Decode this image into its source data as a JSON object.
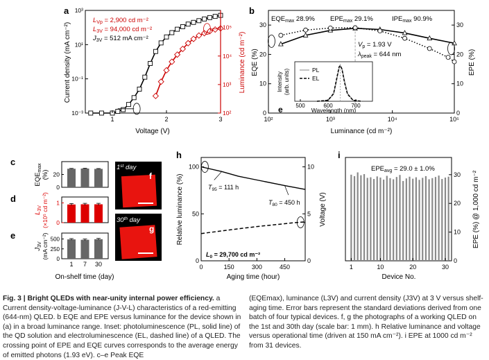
{
  "panels": {
    "a": {
      "letter": "a",
      "ann_lvp": "L",
      "ann_lvp_sub": "Vp",
      "ann_lvp_val": " = 2,900 cd m⁻²",
      "ann_l3v": "L",
      "ann_l3v_sub": "3V",
      "ann_l3v_val": " = 94,000 cd m⁻²",
      "ann_j3v": "J",
      "ann_j3v_sub": "3V",
      "ann_j3v_val": " = 512 mA cm⁻²",
      "ylabel": "Current density (mA cm⁻²)",
      "y2label": "Luminance (cd m⁻²)",
      "xlabel": "Voltage (V)",
      "xticks": [
        "1",
        "2",
        "3"
      ],
      "yticks": [
        "10⁻³",
        "10⁻¹",
        "10¹",
        "10³"
      ],
      "y2ticks": [
        "10²",
        "10³",
        "10⁴",
        "10⁵"
      ]
    },
    "b": {
      "letter": "b",
      "eqe_max": "EQE",
      "eqe_max_sub": "max",
      "eqe_max_val": " 28.9%",
      "epe_max": "EPE",
      "epe_max_sub": "max",
      "epe_max_val": " 29.1%",
      "ipe_max": "IPE",
      "ipe_max_sub": "max",
      "ipe_max_val": " 90.9%",
      "vp": "V",
      "vp_sub": "p",
      "vp_val": " = 1.93 V",
      "lpeak": "λ",
      "lpeak_sub": "peak",
      "lpeak_val": " = 644 nm",
      "ylabel": "EQE (%)",
      "y2label": "EPE (%)",
      "xlabel": "Luminance (cd m⁻²)",
      "yticks": [
        "0",
        "10",
        "20",
        "30"
      ],
      "xticks": [
        "10²",
        "10³",
        "10⁴",
        "10⁵"
      ],
      "inset": {
        "letter": "e",
        "ylabel_1": "Intensity",
        "ylabel_2": "(arb. units)",
        "xlabel": "Wavelength (nm)",
        "xticks": [
          "500",
          "600",
          "700"
        ],
        "legend_pl": "PL",
        "legend_el": "EL"
      }
    },
    "c": {
      "letter": "c",
      "ylabel": "EQE",
      "ylabel_sub": "max",
      "ylabel_unit": "(%)",
      "yticks": [
        "0",
        "20"
      ]
    },
    "d": {
      "letter": "d",
      "ylabel": "L",
      "ylabel_sub": "3V",
      "ylabel_unit": "(×10⁵ cd m⁻²)",
      "yticks": [
        "0",
        "1"
      ]
    },
    "e": {
      "letter": "e",
      "ylabel": "J",
      "ylabel_sub": "3V",
      "ylabel_unit": "(mA cm⁻²)",
      "yticks": [
        "0",
        "250",
        "500"
      ],
      "xticks": [
        "1",
        "7",
        "30"
      ],
      "xlabel": "On-shelf time (day)"
    },
    "f": {
      "letter": "f",
      "day_num": "1",
      "day_sup": "st",
      "day_word": " day"
    },
    "g": {
      "letter": "g",
      "day_num": "30",
      "day_sup": "th",
      "day_word": " day"
    },
    "h": {
      "letter": "h",
      "ylabel": "Relative luminance (%)",
      "y2label": "Voltage (V)",
      "xlabel": "Aging time (hour)",
      "yticks": [
        "0",
        "50",
        "100"
      ],
      "y2ticks": [
        "0",
        "5",
        "10"
      ],
      "xticks": [
        "0",
        "150",
        "300",
        "450"
      ],
      "t95": "T",
      "t95_sub": "95",
      "t95_val": " = 111 h",
      "t80": "T",
      "t80_sub": "80",
      "t80_val": " = 450 h",
      "l0": "L",
      "l0_sub": "0",
      "l0_val": " = 29,700 cd m⁻²"
    },
    "i": {
      "letter": "i",
      "epe_avg": "EPE",
      "epe_avg_sub": "avg",
      "epe_avg_val": " = 29.0 ± 1.0%",
      "ylabel": "EPE (%) @ 1,000 cd m⁻²",
      "yticks": [
        "0",
        "10",
        "20",
        "30"
      ],
      "xticks": [
        "1",
        "10",
        "20",
        "30"
      ],
      "xlabel": "Device No."
    }
  },
  "chart_data": [
    {
      "panel": "a",
      "type": "line",
      "title": "",
      "xlabel": "Voltage (V)",
      "ylabel": "Current density (mA cm-2)",
      "y2label": "Luminance (cd m-2)",
      "xlim": [
        0.5,
        3.0
      ],
      "ylog_exp_range": [
        -3,
        3
      ],
      "y2log_exp_range": [
        2,
        5.6
      ],
      "series": [
        {
          "name": "Current density",
          "color": "#000000",
          "axis": "left",
          "x": [
            0.6,
            0.8,
            1.0,
            1.1,
            1.2,
            1.3,
            1.4,
            1.5,
            1.6,
            1.7,
            1.8,
            1.9,
            2.0,
            2.1,
            2.2,
            2.3,
            2.4,
            2.5,
            2.6,
            2.7,
            2.8,
            2.9,
            3.0
          ],
          "log10_y": [
            -3.0,
            -3.0,
            -3.0,
            -2.9,
            -2.8,
            -2.5,
            -2.1,
            -1.6,
            -0.9,
            -0.1,
            0.6,
            1.1,
            1.45,
            1.7,
            1.9,
            2.05,
            2.2,
            2.3,
            2.4,
            2.5,
            2.58,
            2.65,
            2.71
          ]
        },
        {
          "name": "Luminance",
          "color": "#cc0000",
          "axis": "right",
          "x": [
            1.8,
            1.9,
            2.0,
            2.1,
            2.2,
            2.3,
            2.4,
            2.5,
            2.6,
            2.7,
            2.8,
            2.9,
            3.0
          ],
          "log10_y": [
            2.6,
            3.1,
            3.5,
            3.8,
            4.05,
            4.25,
            4.45,
            4.6,
            4.72,
            4.8,
            4.87,
            4.93,
            4.97
          ]
        }
      ]
    },
    {
      "panel": "b",
      "type": "line",
      "xlabel": "Luminance (cd m-2)",
      "ylabel": "EQE (%)",
      "y2label": "EPE (%)",
      "xlog_exp_range": [
        2,
        5
      ],
      "ylim": [
        0,
        35
      ],
      "series": [
        {
          "name": "EQE",
          "color": "#000000",
          "log10_x": [
            2.2,
            2.6,
            3.0,
            3.4,
            3.8,
            4.2,
            4.6,
            5.0
          ],
          "y": [
            23.5,
            26.5,
            28.2,
            28.9,
            28.5,
            27.3,
            25.5,
            23.8
          ]
        },
        {
          "name": "EPE",
          "color": "#000000",
          "style": "dotted",
          "log10_x": [
            2.2,
            2.6,
            3.0,
            3.4,
            3.8,
            4.2,
            4.6,
            4.9,
            5.0
          ],
          "y": [
            26.5,
            28.3,
            29.0,
            29.1,
            28.0,
            25.5,
            22.0,
            19.0,
            17.5
          ]
        }
      ],
      "inset": {
        "type": "line",
        "xlabel": "Wavelength (nm)",
        "xlim": [
          480,
          760
        ],
        "series": [
          {
            "name": "PL",
            "x": [
              560,
              600,
              620,
              630,
              640,
              644,
              650,
              660,
              670,
              690,
              720
            ],
            "y": [
              0.0,
              0.03,
              0.2,
              0.55,
              0.95,
              1.0,
              0.92,
              0.55,
              0.22,
              0.03,
              0.0
            ]
          },
          {
            "name": "EL",
            "x": [
              560,
              600,
              620,
              630,
              640,
              644,
              650,
              660,
              670,
              690,
              720
            ],
            "y": [
              0.0,
              0.03,
              0.22,
              0.6,
              0.97,
              1.0,
              0.9,
              0.5,
              0.2,
              0.03,
              0.0
            ]
          }
        ]
      }
    },
    {
      "panel": "c",
      "type": "bar",
      "categories": [
        "1",
        "7",
        "30"
      ],
      "values": [
        28.9,
        29.2,
        28.7
      ],
      "errors": [
        0.5,
        0.5,
        0.5
      ],
      "ylim": [
        0,
        40
      ],
      "color": "#666666"
    },
    {
      "panel": "d",
      "type": "bar",
      "categories": [
        "1",
        "7",
        "30"
      ],
      "values": [
        0.92,
        0.93,
        0.93
      ],
      "errors": [
        0.05,
        0.05,
        0.05
      ],
      "ylim": [
        0,
        1.3
      ],
      "color": "#dd0000"
    },
    {
      "panel": "e",
      "type": "bar",
      "categories": [
        "1",
        "7",
        "30"
      ],
      "values": [
        490,
        480,
        495
      ],
      "errors": [
        20,
        20,
        20
      ],
      "ylim": [
        0,
        650
      ],
      "color": "#666666"
    },
    {
      "panel": "h",
      "type": "line",
      "xlabel": "Aging time (hour)",
      "ylabel": "Relative luminance (%)",
      "y2label": "Voltage (V)",
      "xlim": [
        0,
        560
      ],
      "ylim": [
        0,
        110
      ],
      "y2lim": [
        0,
        11
      ],
      "series": [
        {
          "name": "Relative luminance",
          "style": "solid",
          "x": [
            0,
            111,
            200,
            300,
            450,
            560
          ],
          "y": [
            100,
            95,
            90,
            86,
            80,
            76
          ]
        },
        {
          "name": "Voltage",
          "style": "dashed",
          "axis": "right",
          "x": [
            0,
            100,
            200,
            300,
            400,
            500,
            560
          ],
          "y": [
            2.9,
            3.15,
            3.4,
            3.65,
            3.85,
            4.05,
            4.15
          ]
        }
      ]
    },
    {
      "panel": "i",
      "type": "bar",
      "xlabel": "Device No.",
      "ylabel": "EPE (%) @ 1,000 cd m-2",
      "ylim": [
        0,
        36
      ],
      "categories": [
        "1",
        "2",
        "3",
        "4",
        "5",
        "6",
        "7",
        "8",
        "9",
        "10",
        "11",
        "12",
        "13",
        "14",
        "15",
        "16",
        "17",
        "18",
        "19",
        "20",
        "21",
        "22",
        "23",
        "24",
        "25",
        "26",
        "27",
        "28",
        "29",
        "30",
        "31"
      ],
      "values": [
        30.0,
        29.5,
        30.8,
        29.8,
        30.2,
        28.9,
        29.1,
        28.5,
        29.4,
        29.0,
        28.3,
        29.6,
        28.8,
        28.4,
        29.2,
        29.9,
        27.8,
        28.7,
        29.3,
        28.6,
        29.1,
        28.2,
        28.9,
        29.5,
        28.4,
        28.8,
        29.2,
        29.7,
        28.5,
        29.0,
        29.3
      ]
    }
  ],
  "caption": {
    "fig_label": "Fig. 3 | Bright QLEDs with near-unity internal power efficiency.",
    "left_text": " a Current density-voltage-luminance (J-V-L) characteristics of a red-emitting (644-nm) QLED. b EQE and EPE versus luminance for the device shown in (a) in a broad luminance range. Inset: photoluminescence (PL, solid line) of the QD solution and electroluminescence (EL, dashed line) of a QLED. The crossing point of EPE and EQE curves corresponds to the average energy of emitted photons (1.93 eV). c–e Peak EQE",
    "right_text": "(EQEmax), luminance (L3V) and current density (J3V) at 3 V versus shelf-aging time. Error bars represent the standard deviations derived from one batch of four typical devices. f, g the photographs of a working QLED on the 1st and 30th day (scale bar: 1 mm). h Relative luminance and voltage versus operational time (driven at 150 mA cm⁻²). i EPE at 1000 cd m⁻² from 31 devices."
  }
}
